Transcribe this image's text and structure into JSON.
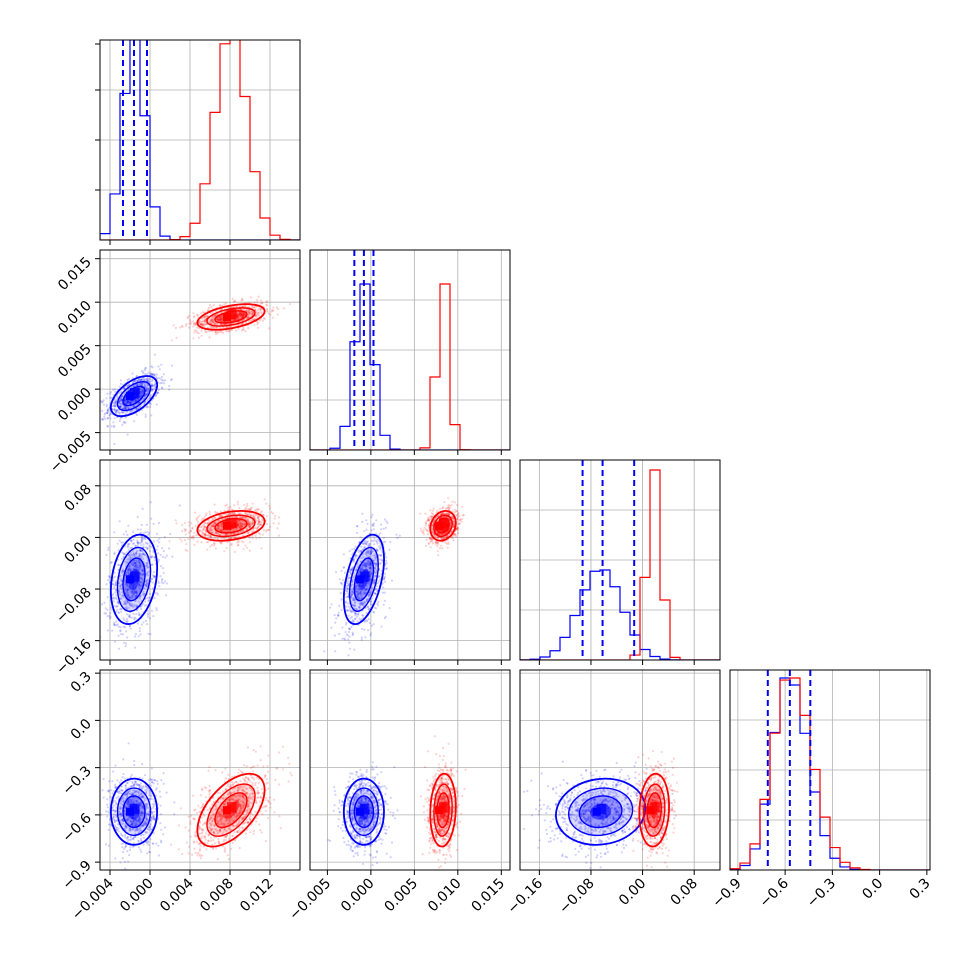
{
  "chart_data": {
    "type": "corner",
    "colors": {
      "blue": "#0000ff",
      "red": "#ff0000"
    },
    "series": [
      {
        "color": "blue",
        "mean": [
          -0.0016,
          -0.0008,
          -0.065,
          -0.58
        ],
        "std": [
          0.0011,
          0.0011,
          0.033,
          0.1
        ],
        "corr": [
          [
            1,
            0.55,
            0.25,
            0.0
          ],
          [
            0.55,
            1,
            0.45,
            0.0
          ],
          [
            0.25,
            0.45,
            1,
            0.1
          ],
          [
            0.0,
            0.0,
            0.1,
            1
          ]
        ],
        "quantiles": [
          [
            -0.0027,
            -0.0016,
            -0.0003
          ],
          [
            -0.0019,
            -0.0008,
            0.0003
          ],
          [
            -0.093,
            -0.062,
            -0.013
          ],
          [
            -0.71,
            -0.57,
            -0.44
          ]
        ]
      },
      {
        "color": "red",
        "mean": [
          0.0081,
          0.0083,
          0.018,
          -0.57
        ],
        "std": [
          0.0016,
          0.0007,
          0.011,
          0.11
        ],
        "corr": [
          [
            1,
            0.45,
            0.3,
            0.55
          ],
          [
            0.45,
            1,
            0.2,
            0.1
          ],
          [
            0.3,
            0.2,
            1,
            0.1
          ],
          [
            0.55,
            0.1,
            0.1,
            1
          ]
        ]
      }
    ],
    "params": [
      {
        "range": [
          -0.005,
          0.015
        ],
        "ticks": [
          -0.004,
          0.0,
          0.004,
          0.008,
          0.012
        ],
        "labels": [
          "−0.004",
          "0.000",
          "0.004",
          "0.008",
          "0.012"
        ]
      },
      {
        "range": [
          -0.007,
          0.016
        ],
        "ticks": [
          -0.005,
          0.0,
          0.005,
          0.01,
          0.015
        ],
        "labels": [
          "−0.005",
          "0.000",
          "0.005",
          "0.010",
          "0.015"
        ]
      },
      {
        "range": [
          -0.19,
          0.12
        ],
        "ticks": [
          -0.16,
          -0.08,
          0.0,
          0.08
        ],
        "labels": [
          "−0.16",
          "−0.08",
          "0.00",
          "0.08"
        ]
      },
      {
        "range": [
          -0.95,
          0.32
        ],
        "ticks": [
          -0.9,
          -0.6,
          -0.3,
          0.0,
          0.3
        ],
        "labels": [
          "−0.9",
          "−0.6",
          "−0.3",
          "0.0",
          "0.3"
        ]
      }
    ]
  }
}
